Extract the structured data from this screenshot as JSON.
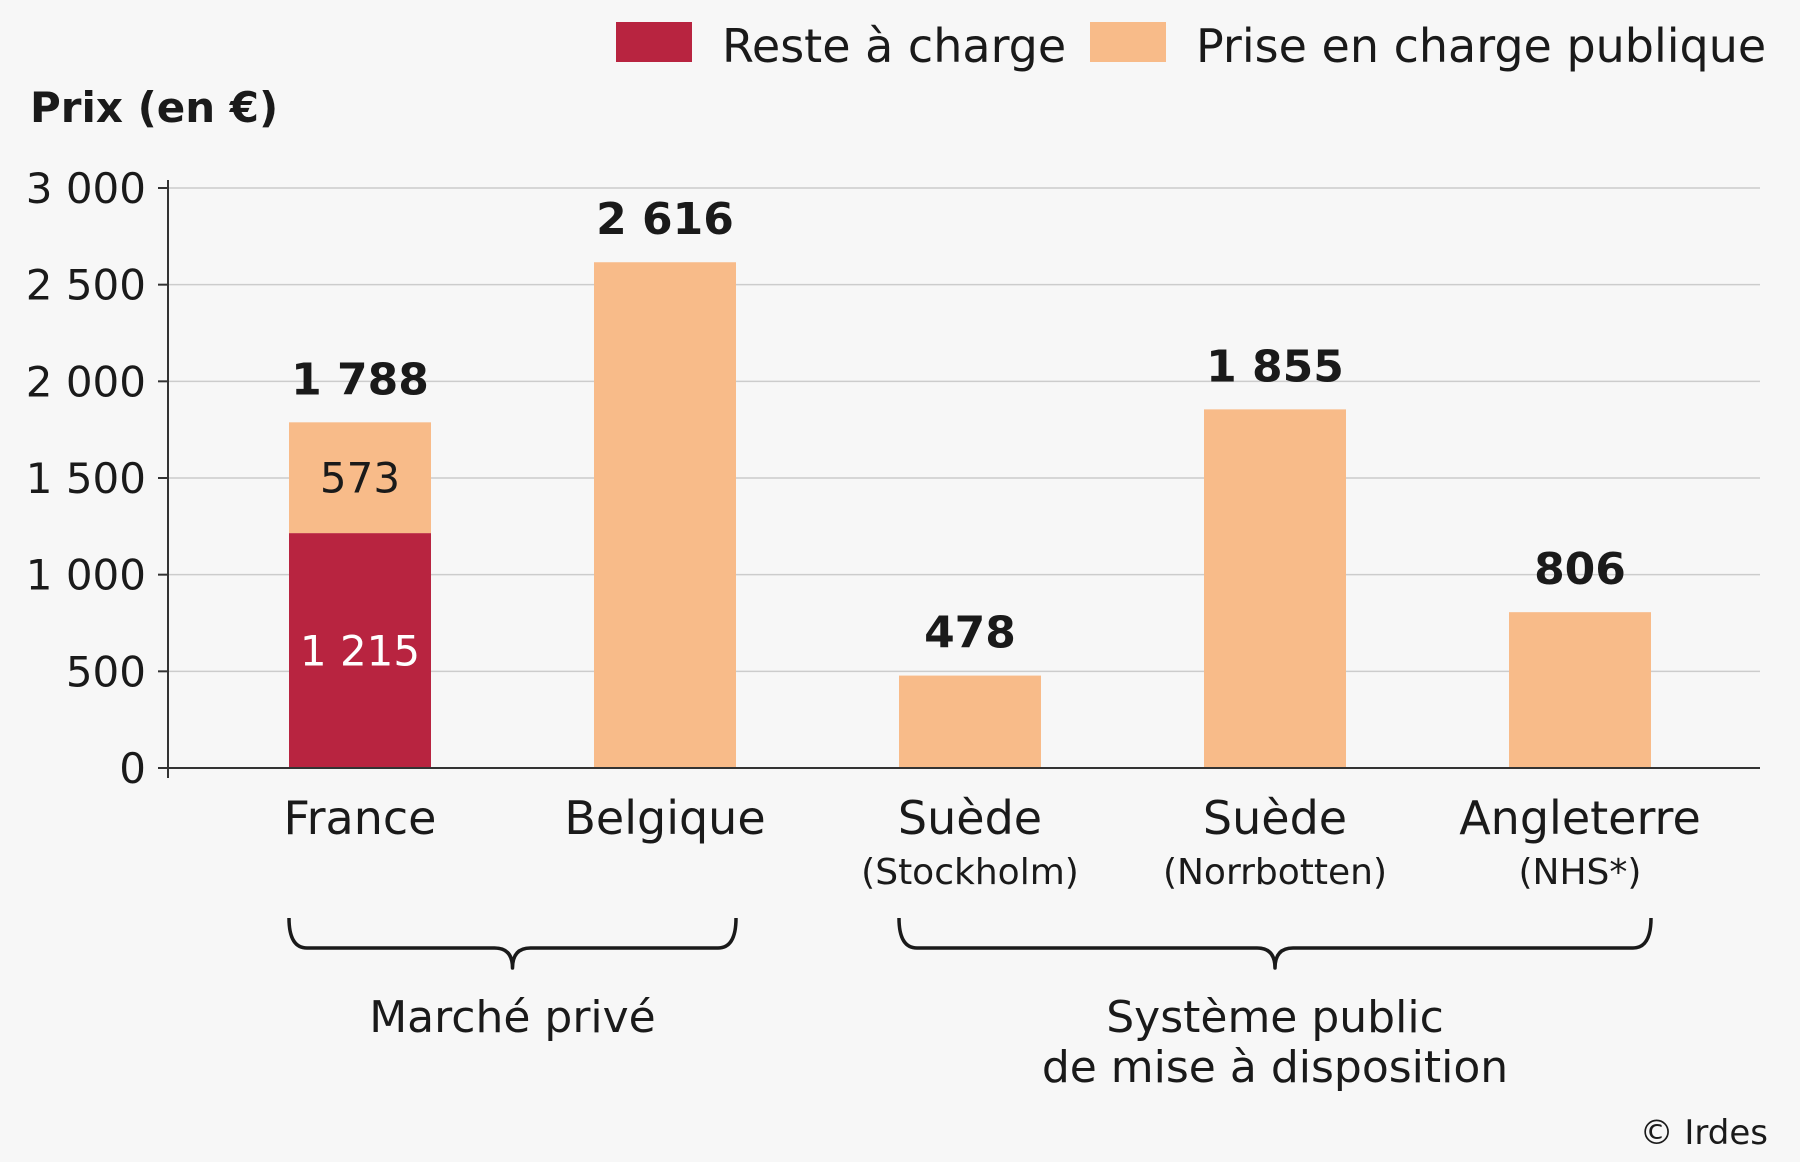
{
  "chart_data": {
    "type": "bar",
    "stacked": true,
    "ylabel": "Prix (en €)",
    "ylim": [
      0,
      3000
    ],
    "yticks": [
      0,
      500,
      1000,
      1500,
      2000,
      2500,
      3000
    ],
    "ytick_labels": [
      "0",
      "500",
      "1 000",
      "1 500",
      "2 000",
      "2 500",
      "3 000"
    ],
    "grid": true,
    "legend_position": "top-right",
    "colors": {
      "reste": "#b82440",
      "publique": "#f8bb89",
      "grid": "#cccccc",
      "axis": "#333333"
    },
    "series": [
      {
        "name": "Reste à charge",
        "values": [
          1215,
          0,
          0,
          0,
          0
        ]
      },
      {
        "name": "Prise en charge publique",
        "values": [
          573,
          2616,
          478,
          1855,
          806
        ]
      }
    ],
    "categories": [
      {
        "label": "France",
        "sublabel": "",
        "total": 1788,
        "total_label": "1 788",
        "segment_labels": [
          "1 215",
          "573"
        ]
      },
      {
        "label": "Belgique",
        "sublabel": "",
        "total": 2616,
        "total_label": "2 616",
        "segment_labels": [
          "",
          ""
        ]
      },
      {
        "label": "Suède",
        "sublabel": "(Stockholm)",
        "total": 478,
        "total_label": "478",
        "segment_labels": [
          "",
          ""
        ]
      },
      {
        "label": "Suède",
        "sublabel": "(Norrbotten)",
        "total": 1855,
        "total_label": "1 855",
        "segment_labels": [
          "",
          ""
        ]
      },
      {
        "label": "Angleterre",
        "sublabel": "(NHS*)",
        "total": 806,
        "total_label": "806",
        "segment_labels": [
          "",
          ""
        ]
      }
    ],
    "groups": [
      {
        "lines": [
          "Marché privé"
        ],
        "from": 0,
        "to": 1
      },
      {
        "lines": [
          "Système public",
          "de mise à disposition"
        ],
        "from": 2,
        "to": 4
      }
    ]
  },
  "credit": "© Irdes"
}
